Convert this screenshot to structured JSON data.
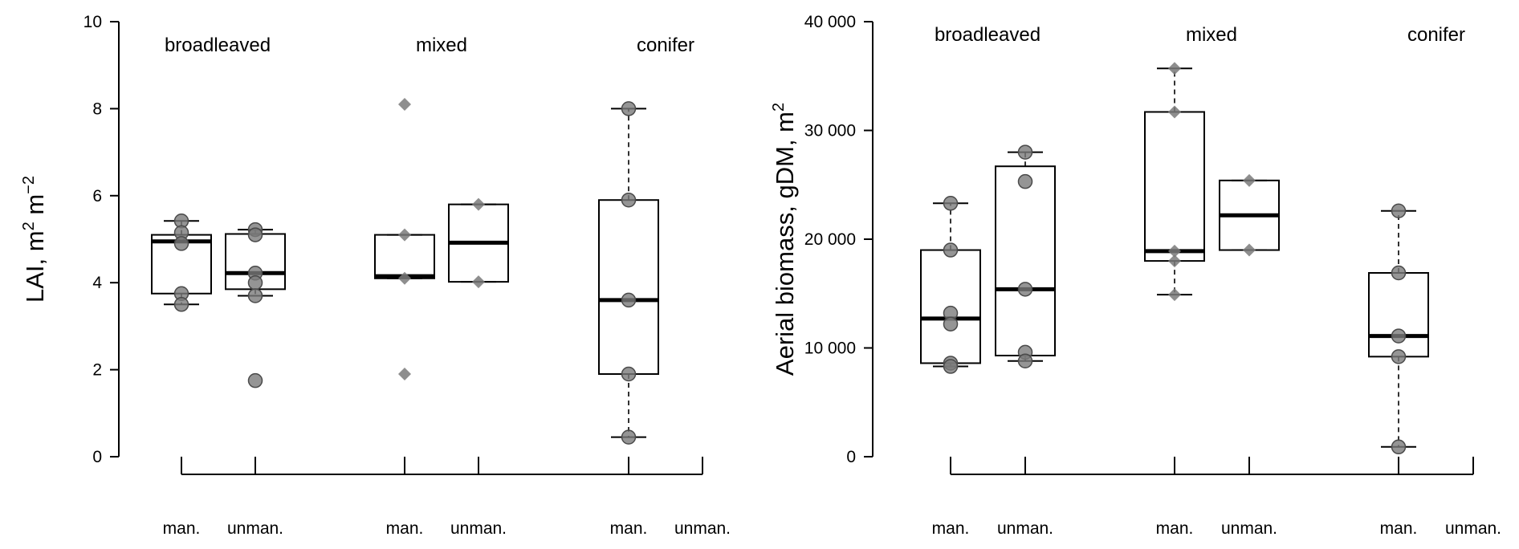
{
  "chart_data": [
    {
      "type": "boxplot",
      "ylabel": "LAI, m",
      "ylabel_sup1": "2",
      "ylabel_mid": " m",
      "ylabel_sup2": "−2",
      "ylim": [
        0,
        10
      ],
      "yticks": [
        0,
        2,
        4,
        6,
        8,
        10
      ],
      "groups": [
        "broadleaved",
        "mixed",
        "conifer"
      ],
      "categories": [
        "man.",
        "unman."
      ],
      "boxes": [
        {
          "group": "broadleaved",
          "category": "man.",
          "min": 3.5,
          "q1": 3.75,
          "median": 4.95,
          "q3": 5.1,
          "max": 5.42,
          "points": [
            5.42,
            5.15,
            4.9,
            3.75,
            3.5
          ],
          "marker": "circle"
        },
        {
          "group": "broadleaved",
          "category": "unman.",
          "min": 3.7,
          "q1": 3.85,
          "median": 4.22,
          "q3": 5.12,
          "max": 5.22,
          "points": [
            5.22,
            5.1,
            4.22,
            4.0,
            3.7,
            1.75
          ],
          "marker": "circle"
        },
        {
          "group": "mixed",
          "category": "man.",
          "min": 4.1,
          "q1": 4.1,
          "median": 4.15,
          "q3": 5.1,
          "max": 5.1,
          "points": [
            8.1,
            5.1,
            4.1,
            1.9
          ],
          "marker": "diamond"
        },
        {
          "group": "mixed",
          "category": "unman.",
          "min": 4.02,
          "q1": 4.02,
          "median": 4.92,
          "q3": 5.8,
          "max": 5.8,
          "points": [
            5.8,
            4.02
          ],
          "marker": "diamond"
        },
        {
          "group": "conifer",
          "category": "man.",
          "min": 0.45,
          "q1": 1.9,
          "median": 3.6,
          "q3": 5.9,
          "max": 8.0,
          "points": [
            8.0,
            5.9,
            3.6,
            1.9,
            0.45
          ],
          "marker": "circle"
        }
      ]
    },
    {
      "type": "boxplot",
      "ylabel": "Aerial biomass, gDM, m",
      "ylabel_sup": "2",
      "ylim": [
        0,
        40000
      ],
      "yticks": [
        0,
        10000,
        20000,
        30000,
        40000
      ],
      "yticklabels": [
        "0",
        "10 000",
        "20 000",
        "30 000",
        "40 000"
      ],
      "groups": [
        "broadleaved",
        "mixed",
        "conifer"
      ],
      "categories": [
        "man.",
        "unman."
      ],
      "boxes": [
        {
          "group": "broadleaved",
          "category": "man.",
          "min": 8300,
          "q1": 8600,
          "median": 12700,
          "q3": 19000,
          "max": 23300,
          "points": [
            23300,
            19000,
            13200,
            12200,
            8600,
            8300
          ],
          "marker": "circle"
        },
        {
          "group": "broadleaved",
          "category": "unman.",
          "min": 8800,
          "q1": 9300,
          "median": 15400,
          "q3": 26700,
          "max": 28000,
          "points": [
            28000,
            25300,
            15400,
            9600,
            8800
          ],
          "marker": "circle"
        },
        {
          "group": "mixed",
          "category": "man.",
          "min": 14900,
          "q1": 18000,
          "median": 18900,
          "q3": 31700,
          "max": 35700,
          "points": [
            35700,
            31700,
            18900,
            18000,
            14900
          ],
          "marker": "diamond"
        },
        {
          "group": "mixed",
          "category": "unman.",
          "min": 19000,
          "q1": 19000,
          "median": 22200,
          "q3": 25400,
          "max": 25400,
          "points": [
            25400,
            19000
          ],
          "marker": "diamond"
        },
        {
          "group": "conifer",
          "category": "man.",
          "min": 900,
          "q1": 9200,
          "median": 11100,
          "q3": 16900,
          "max": 22600,
          "points": [
            22600,
            16900,
            11100,
            9200,
            900
          ],
          "marker": "circle"
        }
      ]
    }
  ]
}
